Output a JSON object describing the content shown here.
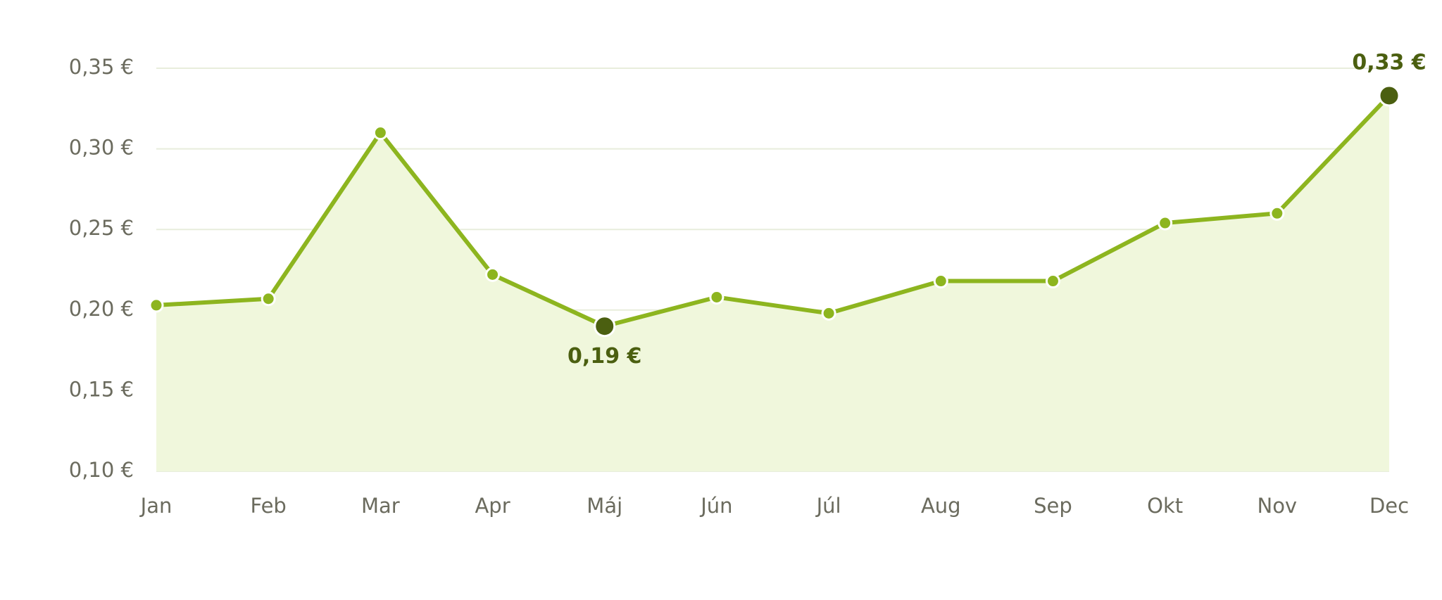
{
  "chart_data": {
    "type": "line",
    "categories": [
      "Jan",
      "Feb",
      "Mar",
      "Apr",
      "Máj",
      "Jún",
      "Júl",
      "Aug",
      "Sep",
      "Okt",
      "Nov",
      "Dec"
    ],
    "values": [
      0.203,
      0.207,
      0.31,
      0.222,
      0.19,
      0.208,
      0.198,
      0.218,
      0.218,
      0.254,
      0.26,
      0.333
    ],
    "value_labels": [
      null,
      null,
      null,
      null,
      "0,19 €",
      null,
      null,
      null,
      null,
      null,
      null,
      "0,33 €"
    ],
    "color": "#8db51f",
    "area_color": "#f0f7dc",
    "highlight_color": "#4b5f10",
    "ylim": [
      0.1,
      0.35
    ],
    "yticks": [
      {
        "value": 0.1,
        "label": "0,10 €"
      },
      {
        "value": 0.15,
        "label": "0,15 €"
      },
      {
        "value": 0.2,
        "label": "0,20 €"
      },
      {
        "value": 0.25,
        "label": "0,25 €"
      },
      {
        "value": 0.3,
        "label": "0,30 €"
      },
      {
        "value": 0.35,
        "label": "0,35 €"
      }
    ],
    "grid": true
  }
}
